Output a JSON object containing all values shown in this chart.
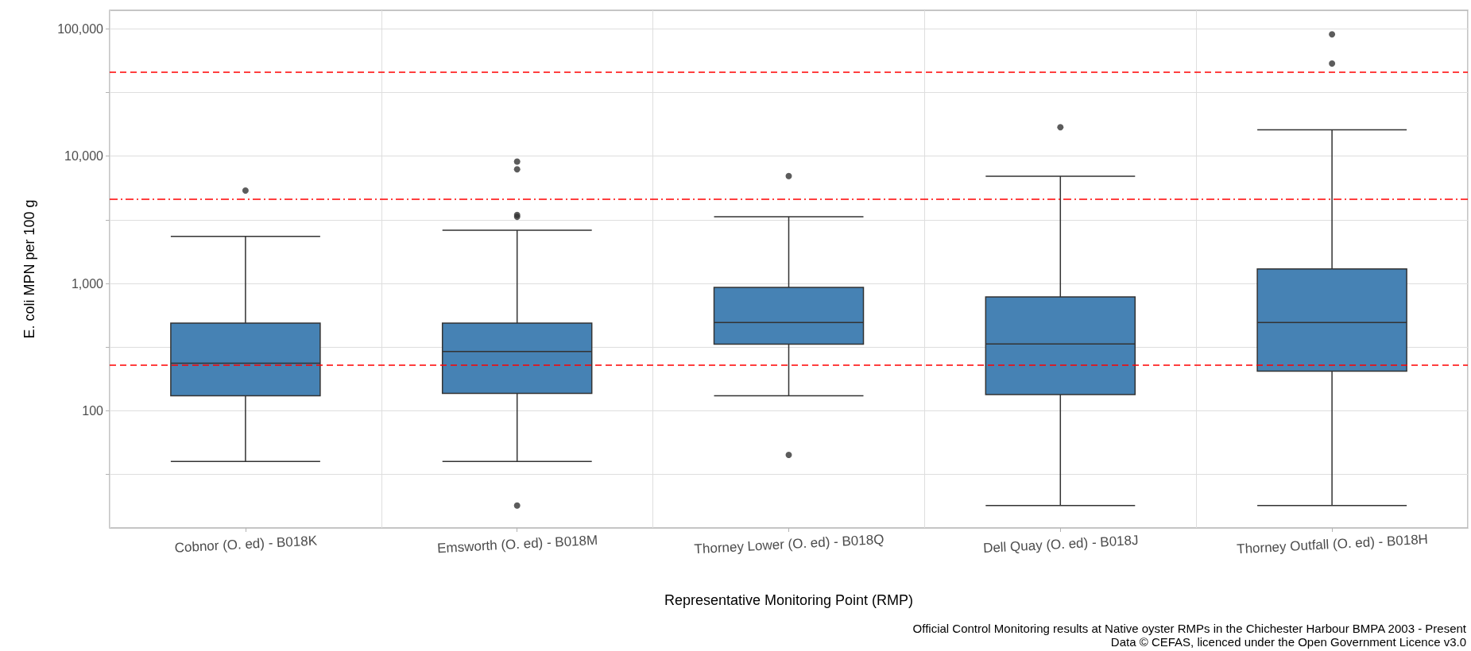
{
  "chart_data": {
    "type": "box",
    "xlabel": "Representative Monitoring Point (RMP)",
    "ylabel": "E. coli MPN per 100 g",
    "categories": [
      "Cobnor (O. ed) - B018K",
      "Emsworth (O. ed) - B018M",
      "Thorney Lower (O. ed) - B018Q",
      "Dell Quay (O. ed) - B018J",
      "Thorney Outfall (O. ed) - B018H"
    ],
    "boxes": [
      {
        "low": 40,
        "q1": 131,
        "median": 236,
        "q3": 488,
        "high": 2340,
        "outliers": [
          5370
        ]
      },
      {
        "low": 40,
        "q1": 137,
        "median": 292,
        "q3": 488,
        "high": 2620,
        "outliers": [
          9080,
          7890,
          3450,
          3340,
          18
        ]
      },
      {
        "low": 131,
        "q1": 334,
        "median": 494,
        "q3": 931,
        "high": 3340,
        "outliers": [
          6980,
          45
        ]
      },
      {
        "low": 18,
        "q1": 134,
        "median": 335,
        "q3": 783,
        "high": 6970,
        "outliers": [
          16900
        ]
      },
      {
        "low": 18,
        "q1": 205,
        "median": 494,
        "q3": 1300,
        "high": 16100,
        "outliers": [
          90600,
          53500
        ]
      }
    ],
    "color": "#4682b4",
    "log": true,
    "ylim": [
      12,
      140000
    ],
    "yticks": [
      {
        "value": 31.62,
        "label": null
      },
      {
        "value": 100,
        "label": "100"
      },
      {
        "value": 316.2,
        "label": null
      },
      {
        "value": 1000,
        "label": "1,000"
      },
      {
        "value": 3162,
        "label": null
      },
      {
        "value": 10000,
        "label": "10,000"
      },
      {
        "value": 31623,
        "label": null
      },
      {
        "value": 100000,
        "label": "100,000"
      }
    ],
    "grid": true,
    "ref_lines": [
      {
        "axis": "y",
        "value": 230,
        "color": "#ff0000",
        "line_style": "dashed"
      },
      {
        "axis": "y",
        "value": 4600,
        "color": "#ff0000",
        "line_style": "dashdot"
      },
      {
        "axis": "y",
        "value": 46000,
        "color": "#ff0000",
        "line_style": "dashed"
      }
    ],
    "annotations": [
      "Official Control Monitoring results at Native oyster RMPs in the Chichester Harbour BMPA 2003 - Present",
      "Data © CEFAS, licenced under the Open Government Licence v3.0"
    ]
  }
}
